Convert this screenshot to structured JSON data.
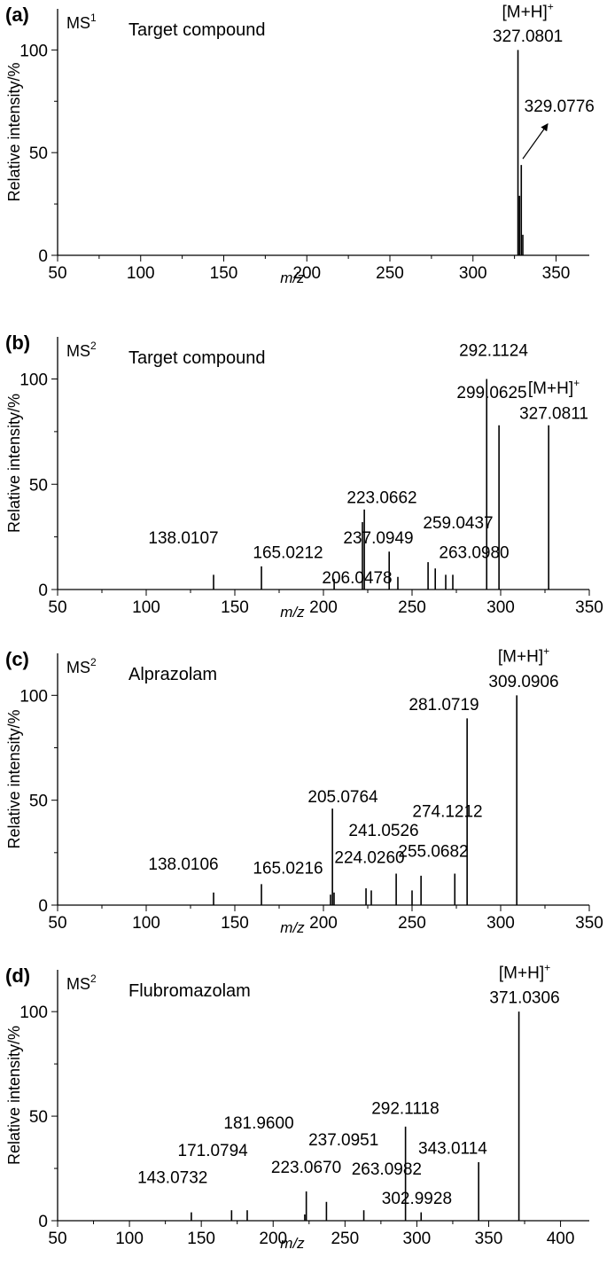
{
  "chart_data": [
    {
      "type": "bar",
      "panel_label": "(a)",
      "ms_label": "MS",
      "ms_order": "1",
      "compound": "Target compound",
      "xlabel": "m/z",
      "ylabel": "Relative intensity/%",
      "xlim": [
        50,
        370
      ],
      "ylim": [
        0,
        120
      ],
      "xticks": [
        50,
        100,
        150,
        200,
        250,
        300,
        350
      ],
      "yticks": [
        0,
        50,
        100
      ],
      "peaks": [
        {
          "x": 327.0801,
          "y": 100
        },
        {
          "x": 328.0,
          "y": 29
        },
        {
          "x": 329.0776,
          "y": 44
        },
        {
          "x": 330.0,
          "y": 10
        }
      ],
      "annotations": [
        {
          "text": "[M+H]",
          "sup": "+",
          "x": 333,
          "y": 116
        },
        {
          "text": "327.0801",
          "x": 333,
          "y": 104
        },
        {
          "text": "329.0776",
          "x": 352,
          "y": 70,
          "arrow_from": [
            330,
            47
          ],
          "arrow_to": [
            345,
            64
          ]
        }
      ]
    },
    {
      "type": "bar",
      "panel_label": "(b)",
      "ms_label": "MS",
      "ms_order": "2",
      "compound": "Target compound",
      "xlabel": "m/z",
      "ylabel": "Relative intensity/%",
      "xlim": [
        50,
        350
      ],
      "ylim": [
        0,
        120
      ],
      "xticks": [
        50,
        100,
        150,
        200,
        250,
        300,
        350
      ],
      "yticks": [
        0,
        50,
        100
      ],
      "peaks": [
        {
          "x": 138.0107,
          "y": 7
        },
        {
          "x": 165.0212,
          "y": 11
        },
        {
          "x": 206.0478,
          "y": 5
        },
        {
          "x": 222.0,
          "y": 32
        },
        {
          "x": 223.0662,
          "y": 38
        },
        {
          "x": 237.0949,
          "y": 18
        },
        {
          "x": 242.0,
          "y": 6
        },
        {
          "x": 259.0437,
          "y": 13
        },
        {
          "x": 263.098,
          "y": 10
        },
        {
          "x": 269.0,
          "y": 7
        },
        {
          "x": 273.0,
          "y": 7
        },
        {
          "x": 292.1124,
          "y": 100
        },
        {
          "x": 299.0625,
          "y": 78
        },
        {
          "x": 327.0811,
          "y": 78
        }
      ],
      "annotations": [
        {
          "text": "292.1124",
          "x": 296,
          "y": 111
        },
        {
          "text": "299.0625",
          "x": 295,
          "y": 91
        },
        {
          "text": "[M+H]",
          "sup": "+",
          "x": 330,
          "y": 93
        },
        {
          "text": "327.0811",
          "x": 330,
          "y": 81
        },
        {
          "text": "223.0662",
          "x": 233,
          "y": 41
        },
        {
          "text": "259.0437",
          "x": 276,
          "y": 29
        },
        {
          "text": "237.0949",
          "x": 231,
          "y": 22
        },
        {
          "text": "138.0107",
          "x": 121,
          "y": 22
        },
        {
          "text": "165.0212",
          "x": 180,
          "y": 15
        },
        {
          "text": "263.0980",
          "x": 285,
          "y": 15
        },
        {
          "text": "206.0478",
          "x": 219,
          "y": 3
        }
      ]
    },
    {
      "type": "bar",
      "panel_label": "(c)",
      "ms_label": "MS",
      "ms_order": "2",
      "compound": "Alprazolam",
      "xlabel": "m/z",
      "ylabel": "Relative intensity/%",
      "xlim": [
        50,
        350
      ],
      "ylim": [
        0,
        120
      ],
      "xticks": [
        50,
        100,
        150,
        200,
        250,
        300,
        350
      ],
      "yticks": [
        0,
        50,
        100
      ],
      "peaks": [
        {
          "x": 138.0106,
          "y": 6
        },
        {
          "x": 165.0216,
          "y": 10
        },
        {
          "x": 204.0,
          "y": 5
        },
        {
          "x": 205.0764,
          "y": 46
        },
        {
          "x": 206.0,
          "y": 6
        },
        {
          "x": 224.026,
          "y": 8
        },
        {
          "x": 227.0,
          "y": 7
        },
        {
          "x": 241.0526,
          "y": 15
        },
        {
          "x": 250.0,
          "y": 7
        },
        {
          "x": 255.0682,
          "y": 14
        },
        {
          "x": 274.1212,
          "y": 15
        },
        {
          "x": 281.0719,
          "y": 89
        },
        {
          "x": 309.0906,
          "y": 100
        }
      ],
      "annotations": [
        {
          "text": "[M+H]",
          "sup": "+",
          "x": 313,
          "y": 116
        },
        {
          "text": "309.0906",
          "x": 313,
          "y": 104
        },
        {
          "text": "281.0719",
          "x": 268,
          "y": 93
        },
        {
          "text": "205.0764",
          "x": 211,
          "y": 49
        },
        {
          "text": "274.1212",
          "x": 270,
          "y": 42
        },
        {
          "text": "241.0526",
          "x": 234,
          "y": 33
        },
        {
          "text": "255.0682",
          "x": 262,
          "y": 23
        },
        {
          "text": "138.0106",
          "x": 121,
          "y": 17
        },
        {
          "text": "165.0216",
          "x": 180,
          "y": 15
        },
        {
          "text": "224.0260",
          "x": 226,
          "y": 20
        }
      ]
    },
    {
      "type": "bar",
      "panel_label": "(d)",
      "ms_label": "MS",
      "ms_order": "2",
      "compound": "Flubromazolam",
      "xlabel": "m/z",
      "ylabel": "Relative intensity/%",
      "xlim": [
        50,
        420
      ],
      "ylim": [
        0,
        120
      ],
      "xticks": [
        50,
        100,
        150,
        200,
        250,
        300,
        350,
        400
      ],
      "yticks": [
        0,
        50,
        100
      ],
      "peaks": [
        {
          "x": 143.0732,
          "y": 4
        },
        {
          "x": 171.0794,
          "y": 5
        },
        {
          "x": 181.96,
          "y": 5
        },
        {
          "x": 222.0,
          "y": 3
        },
        {
          "x": 223.067,
          "y": 14
        },
        {
          "x": 237.0951,
          "y": 9
        },
        {
          "x": 263.0982,
          "y": 5
        },
        {
          "x": 292.1118,
          "y": 45
        },
        {
          "x": 302.9928,
          "y": 4
        },
        {
          "x": 343.0114,
          "y": 28
        },
        {
          "x": 371.0306,
          "y": 100
        }
      ],
      "annotations": [
        {
          "text": "[M+H]",
          "sup": "+",
          "x": 375,
          "y": 116
        },
        {
          "text": "371.0306",
          "x": 375,
          "y": 104
        },
        {
          "text": "292.1118",
          "x": 292,
          "y": 51
        },
        {
          "text": "181.9600",
          "x": 190,
          "y": 44
        },
        {
          "text": "237.0951",
          "x": 249,
          "y": 36
        },
        {
          "text": "171.0794",
          "x": 158,
          "y": 31
        },
        {
          "text": "343.0114",
          "x": 325,
          "y": 32
        },
        {
          "text": "223.0670",
          "x": 223,
          "y": 23
        },
        {
          "text": "263.0982",
          "x": 279,
          "y": 22
        },
        {
          "text": "143.0732",
          "x": 130,
          "y": 18
        },
        {
          "text": "302.9928",
          "x": 300,
          "y": 8
        }
      ]
    }
  ]
}
